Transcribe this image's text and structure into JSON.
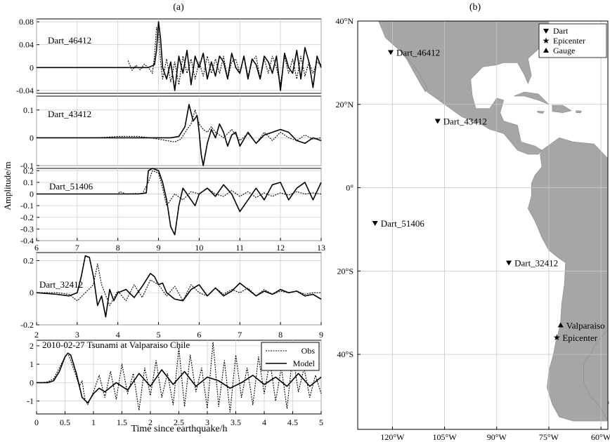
{
  "panel_labels": {
    "a": "(a)",
    "b": "(b)"
  },
  "ylabel": "Amplitude/m",
  "xlabel": "Time since earthquake/h",
  "chart_data": [
    {
      "type": "line",
      "title": "Dart_46412",
      "xlim": [
        6,
        13
      ],
      "ylim": [
        -0.045,
        0.085
      ],
      "yticks": [
        -0.04,
        0,
        0.04,
        0.08
      ],
      "ytick_labels": [
        "-0.04",
        "0",
        "0.04",
        "0.08"
      ],
      "series": [
        {
          "style": "model",
          "x": [
            6,
            6.5,
            7,
            7.5,
            8,
            8.5,
            8.75,
            8.9,
            8.95,
            9,
            9.05,
            9.1,
            9.2,
            9.3,
            9.4,
            9.5,
            9.6,
            9.7,
            9.8,
            9.9,
            10,
            10.1,
            10.2,
            10.3,
            10.4,
            10.5,
            10.6,
            10.7,
            10.8,
            10.9,
            11,
            11.1,
            11.2,
            11.3,
            11.4,
            11.5,
            11.6,
            11.7,
            11.8,
            11.9,
            12,
            12.1,
            12.2,
            12.3,
            12.4,
            12.5,
            12.6,
            12.7,
            12.8,
            12.9,
            13
          ],
          "y": [
            0,
            0,
            0,
            0,
            0,
            0,
            0,
            0.005,
            0.03,
            0.08,
            0.05,
            0,
            -0.02,
            0.01,
            -0.04,
            0.02,
            -0.01,
            0.03,
            -0.03,
            0.02,
            0,
            0.025,
            -0.02,
            0.01,
            -0.015,
            0.02,
            0.01,
            -0.02,
            0.025,
            0,
            -0.01,
            0.02,
            -0.02,
            0.015,
            0.005,
            -0.02,
            0.02,
            0.01,
            -0.01,
            0.02,
            -0.04,
            0.025,
            0,
            -0.01,
            0.03,
            -0.02,
            0.035,
            0.01,
            -0.035,
            0.02,
            0
          ]
        },
        {
          "style": "obs",
          "x": [
            8.25,
            8.35,
            8.45,
            8.55,
            8.65,
            8.75,
            8.85,
            8.9,
            8.95,
            9,
            9.05,
            9.1,
            9.2,
            9.3,
            9.4,
            9.5,
            9.6,
            9.7,
            9.8,
            9.9,
            10,
            10.1,
            10.2,
            10.3,
            10.4,
            10.5,
            10.6,
            10.7,
            10.8,
            10.9,
            11,
            11.1,
            11.2,
            11.3,
            11.4,
            11.5,
            11.6,
            11.7,
            11.8,
            11.9,
            12,
            12.1,
            12.2,
            12.3,
            12.4,
            12.5,
            12.6,
            12.7,
            12.8,
            12.9,
            13
          ],
          "y": [
            0.012,
            -0.005,
            0.004,
            -0.004,
            0.006,
            0,
            -0.01,
            0.02,
            0.07,
            0.06,
            0.01,
            -0.02,
            0.015,
            -0.025,
            0.01,
            -0.03,
            0.02,
            -0.01,
            0.015,
            -0.02,
            0.01,
            -0.015,
            0.02,
            -0.01,
            0.015,
            -0.01,
            0.02,
            -0.02,
            0.01,
            0.015,
            -0.01,
            0.02,
            -0.015,
            0.01,
            0.02,
            -0.02,
            0.015,
            -0.01,
            0.02,
            0,
            -0.03,
            0.02,
            -0.01,
            0.015,
            -0.02,
            0.02,
            -0.015,
            0.01,
            -0.01,
            0.01,
            0.005
          ]
        }
      ]
    },
    {
      "type": "line",
      "title": "Dart_43412",
      "xlim": [
        6,
        13
      ],
      "ylim": [
        -0.1,
        0.15
      ],
      "yticks": [
        -0.1,
        0,
        0.1
      ],
      "ytick_labels": [
        "-0.1",
        "0",
        "0.1"
      ],
      "series": [
        {
          "style": "model",
          "x": [
            6,
            7,
            8,
            8.5,
            9,
            9.3,
            9.5,
            9.65,
            9.75,
            9.85,
            9.95,
            10,
            10.05,
            10.1,
            10.2,
            10.3,
            10.4,
            10.5,
            10.6,
            10.7,
            10.8,
            10.9,
            11,
            11.2,
            11.4,
            11.6,
            11.8,
            12,
            12.2,
            12.4,
            12.6,
            12.8,
            13
          ],
          "y": [
            0,
            0,
            0,
            0,
            0,
            0,
            0.005,
            0.04,
            0.12,
            0.06,
            0.08,
            0.02,
            -0.06,
            -0.1,
            -0.02,
            0.03,
            0,
            0.05,
            0.02,
            -0.03,
            0.01,
            0.02,
            -0.03,
            0.02,
            -0.02,
            0.01,
            0.02,
            0.03,
            0.02,
            -0.01,
            -0.02,
            0,
            -0.01
          ]
        },
        {
          "style": "obs",
          "x": [
            7.3,
            7.5,
            8,
            8.5,
            8.8,
            9,
            9.2,
            9.4,
            9.55,
            9.7,
            9.8,
            9.9,
            10,
            10.1,
            10.2,
            10.3,
            10.4,
            10.6,
            10.8,
            11,
            11.2,
            11.4,
            11.6,
            11.8,
            12,
            12.2,
            12.4,
            12.6,
            12.8,
            13
          ],
          "y": [
            0,
            0,
            0.005,
            0.005,
            0,
            -0.005,
            -0.01,
            -0.015,
            -0.005,
            0.03,
            0.05,
            0.1,
            0.05,
            0.03,
            0.02,
            0.04,
            0.02,
            0,
            0.03,
            -0.01,
            0.015,
            -0.02,
            0.02,
            -0.01,
            0.02,
            0,
            -0.01,
            0.01,
            -0.005,
            0
          ]
        }
      ]
    },
    {
      "type": "line",
      "title": "Dart_51406",
      "xlim": [
        6,
        13
      ],
      "ylim": [
        -0.4,
        0.22
      ],
      "yticks": [
        -0.4,
        -0.3,
        -0.2,
        -0.1,
        0,
        0.1,
        0.2
      ],
      "ytick_labels": [
        "-0.4",
        "-0.3",
        "-0.2",
        "-0.1",
        "0",
        "0.1",
        "0.2"
      ],
      "xticks": [
        6,
        7,
        8,
        9,
        10,
        11,
        12,
        13
      ],
      "xtick_labels": [
        "6",
        "7",
        "8",
        "9",
        "10",
        "11",
        "12",
        "13"
      ],
      "series": [
        {
          "style": "model",
          "x": [
            6,
            7,
            8,
            8.5,
            8.7,
            8.75,
            8.85,
            9,
            9.1,
            9.2,
            9.3,
            9.4,
            9.5,
            9.6,
            9.7,
            9.8,
            9.9,
            10,
            10.2,
            10.4,
            10.6,
            10.8,
            11,
            11.2,
            11.4,
            11.6,
            11.8,
            12,
            12.2,
            12.4,
            12.6,
            12.8,
            13
          ],
          "y": [
            0,
            0,
            0,
            0,
            0.01,
            0.2,
            0.22,
            0.2,
            0.1,
            -0.05,
            -0.28,
            -0.35,
            -0.1,
            0.05,
            0,
            -0.05,
            -0.1,
            0,
            0.05,
            -0.02,
            0.08,
            0,
            -0.15,
            -0.05,
            0.05,
            -0.05,
            0.08,
            0.1,
            -0.05,
            0.05,
            0.1,
            -0.05,
            0.1
          ]
        },
        {
          "style": "obs",
          "x": [
            7,
            8,
            8.05,
            8.2,
            8.4,
            8.6,
            8.75,
            8.85,
            9,
            9.1,
            9.2,
            9.4,
            9.6,
            9.8,
            10,
            10.2,
            10.4,
            10.6,
            10.8,
            11,
            11.2,
            11.4,
            11.6,
            11.8,
            12,
            12.2,
            12.4,
            12.6,
            12.8,
            13
          ],
          "y": [
            0,
            0,
            0.02,
            0,
            0.005,
            0,
            0.1,
            0.2,
            0.18,
            0.05,
            -0.1,
            0,
            -0.05,
            0.02,
            0,
            0.05,
            0,
            -0.02,
            0.03,
            -0.02,
            0.02,
            -0.03,
            0.01,
            -0.02,
            0.01,
            -0.01,
            0.02,
            0,
            0.01,
            0
          ]
        }
      ]
    },
    {
      "type": "line",
      "title": "Dart_32412",
      "xlim": [
        2,
        9
      ],
      "ylim": [
        -0.2,
        0.25
      ],
      "yticks": [
        -0.2,
        0,
        0.2
      ],
      "ytick_labels": [
        "-0.2",
        "0",
        "0.2"
      ],
      "xticks": [
        2,
        3,
        4,
        5,
        6,
        7,
        8,
        9
      ],
      "xtick_labels": [
        "2",
        "3",
        "4",
        "5",
        "6",
        "7",
        "8",
        "9"
      ],
      "series": [
        {
          "style": "model",
          "x": [
            2,
            2.5,
            2.8,
            3,
            3.1,
            3.2,
            3.3,
            3.4,
            3.5,
            3.6,
            3.7,
            3.8,
            3.9,
            4,
            4.2,
            4.4,
            4.6,
            4.8,
            4.9,
            5,
            5.1,
            5.2,
            5.4,
            5.6,
            5.8,
            6,
            6.2,
            6.4,
            6.6,
            6.8,
            7,
            7.2,
            7.4,
            7.6,
            7.8,
            8,
            8.2,
            8.4,
            8.6,
            8.8,
            9
          ],
          "y": [
            0,
            -0.01,
            -0.02,
            0,
            0.1,
            0.23,
            0.22,
            0.1,
            -0.08,
            -0.02,
            -0.15,
            0.02,
            -0.05,
            0,
            0.02,
            -0.03,
            0.04,
            0.12,
            0.1,
            0.05,
            0.06,
            0,
            -0.04,
            -0.05,
            0.02,
            0.05,
            -0.02,
            0.03,
            -0.02,
            0.01,
            0.06,
            0.02,
            -0.02,
            0.01,
            -0.01,
            0.02,
            0,
            0.01,
            -0.02,
            -0.01,
            -0.04
          ]
        },
        {
          "style": "obs",
          "x": [
            2,
            2.5,
            2.8,
            3,
            3.2,
            3.4,
            3.5,
            3.6,
            3.8,
            4,
            4.2,
            4.4,
            4.6,
            4.8,
            5,
            5.2,
            5.4,
            5.6,
            5.8,
            6,
            6.2,
            6.4,
            6.6,
            6.8,
            7,
            7.2,
            7.4,
            7.6,
            7.8,
            8,
            8.2,
            8.4,
            8.6,
            8.8,
            9
          ],
          "y": [
            0,
            0,
            -0.01,
            -0.05,
            0,
            0.05,
            0.18,
            0.05,
            -0.08,
            0.01,
            -0.05,
            0.05,
            -0.03,
            0.08,
            0.05,
            -0.02,
            0.04,
            -0.05,
            0.05,
            0,
            -0.02,
            0.03,
            -0.01,
            0.02,
            0,
            0.03,
            -0.02,
            0.02,
            -0.01,
            0.01,
            0,
            0.01,
            -0.01,
            0,
            0
          ]
        }
      ]
    },
    {
      "type": "line",
      "title": "2010-02-27 Tsunami at Valparaiso Chile",
      "xlim": [
        0,
        5
      ],
      "ylim": [
        -1.7,
        2.3
      ],
      "yticks": [
        -1,
        0,
        1,
        2
      ],
      "ytick_labels": [
        "-1",
        "0",
        "1",
        "2"
      ],
      "xticks": [
        0,
        0.5,
        1,
        1.5,
        2,
        2.5,
        3,
        3.5,
        4,
        4.5,
        5
      ],
      "xtick_labels": [
        "0",
        "0.5",
        "1",
        "1.5",
        "2",
        "2.5",
        "3",
        "3.5",
        "4",
        "4.5",
        "5"
      ],
      "legend": [
        "Obs",
        "Model"
      ],
      "legend_position": "top-right",
      "series": [
        {
          "name": "Obs",
          "style": "obs",
          "x": [
            0,
            0.1,
            0.2,
            0.3,
            0.4,
            0.5,
            0.55,
            0.6,
            0.7,
            0.75,
            0.8,
            0.85,
            0.9,
            1,
            1.1,
            1.2,
            1.3,
            1.4,
            1.5,
            1.6,
            1.7,
            1.8,
            1.9,
            2,
            2.1,
            2.2,
            2.3,
            2.4,
            2.5,
            2.6,
            2.7,
            2.8,
            2.9,
            3,
            3.1,
            3.2,
            3.3,
            3.4,
            3.5,
            3.6,
            3.7,
            3.8,
            3.9,
            4,
            4.1,
            4.2,
            4.3,
            4.4,
            4.5,
            4.6,
            4.7,
            4.8,
            4.9,
            5
          ],
          "y": [
            0,
            0,
            0.05,
            0.2,
            0.8,
            1.4,
            1.6,
            1.2,
            0.3,
            -0.2,
            0.1,
            -0.9,
            -1.2,
            -0.5,
            0.4,
            -0.8,
            0.6,
            -0.9,
            1,
            -0.6,
            0.5,
            -1.5,
            0.8,
            -0.7,
            1.2,
            -0.8,
            0.5,
            -1.2,
            1.9,
            -1.3,
            1.5,
            -0.5,
            0.8,
            -1.4,
            2.2,
            -1.3,
            1.2,
            -1.6,
            1.5,
            -0.8,
            0.8,
            -1.2,
            1.4,
            -0.6,
            1.2,
            -1,
            0.8,
            -1.4,
            1.5,
            -0.5,
            0.8,
            -0.8,
            0.4,
            -0.6
          ]
        },
        {
          "name": "Model",
          "style": "model",
          "x": [
            0,
            0.1,
            0.2,
            0.3,
            0.4,
            0.5,
            0.55,
            0.6,
            0.7,
            0.8,
            0.9,
            1,
            1.1,
            1.2,
            1.4,
            1.6,
            1.8,
            2,
            2.2,
            2.4,
            2.6,
            2.8,
            3,
            3.2,
            3.4,
            3.6,
            3.8,
            4,
            4.2,
            4.4,
            4.6,
            4.8,
            5
          ],
          "y": [
            0,
            0,
            0,
            0.1,
            0.6,
            1.4,
            1.6,
            1.5,
            0.5,
            -0.8,
            -1.1,
            -0.6,
            -0.3,
            -0.5,
            0,
            -0.4,
            0.5,
            -0.2,
            0.7,
            -0.1,
            0.6,
            -0.2,
            0.3,
            0.1,
            -0.3,
            0,
            0.4,
            -0.1,
            0.3,
            -0.2,
            0.5,
            -0.2,
            0.3
          ]
        }
      ]
    },
    {
      "type": "map",
      "lon_range": [
        -130,
        -58
      ],
      "lat_range": [
        -58,
        40
      ],
      "lat_tick_labels": [
        "40°N",
        "20°N",
        "0°",
        "20°S",
        "40°S"
      ],
      "lon_tick_labels": [
        "120°W",
        "105°W",
        "90°W",
        "75°W",
        "60°W"
      ],
      "legend": [
        {
          "label": "Dart",
          "symbol": "triangle-down"
        },
        {
          "label": "Epicenter",
          "symbol": "star"
        },
        {
          "label": "Gauge",
          "symbol": "triangle-up"
        }
      ],
      "stations": [
        {
          "name": "Dart_46412",
          "kind": "dart",
          "lon": -120.5,
          "lat": 32.5
        },
        {
          "name": "Dart_43412",
          "kind": "dart",
          "lon": -107,
          "lat": 16
        },
        {
          "name": "Dart_51406",
          "kind": "dart",
          "lon": -125,
          "lat": -8.5
        },
        {
          "name": "Dart_32412",
          "kind": "dart",
          "lon": -86.5,
          "lat": -18
        },
        {
          "name": "Valparaiso",
          "kind": "gauge",
          "lon": -71.6,
          "lat": -33
        },
        {
          "name": "Epicenter",
          "kind": "epicenter",
          "lon": -72.7,
          "lat": -35.9
        }
      ],
      "colors": {
        "land": "#a6a6a6",
        "ocean": "#ffffff"
      }
    }
  ]
}
